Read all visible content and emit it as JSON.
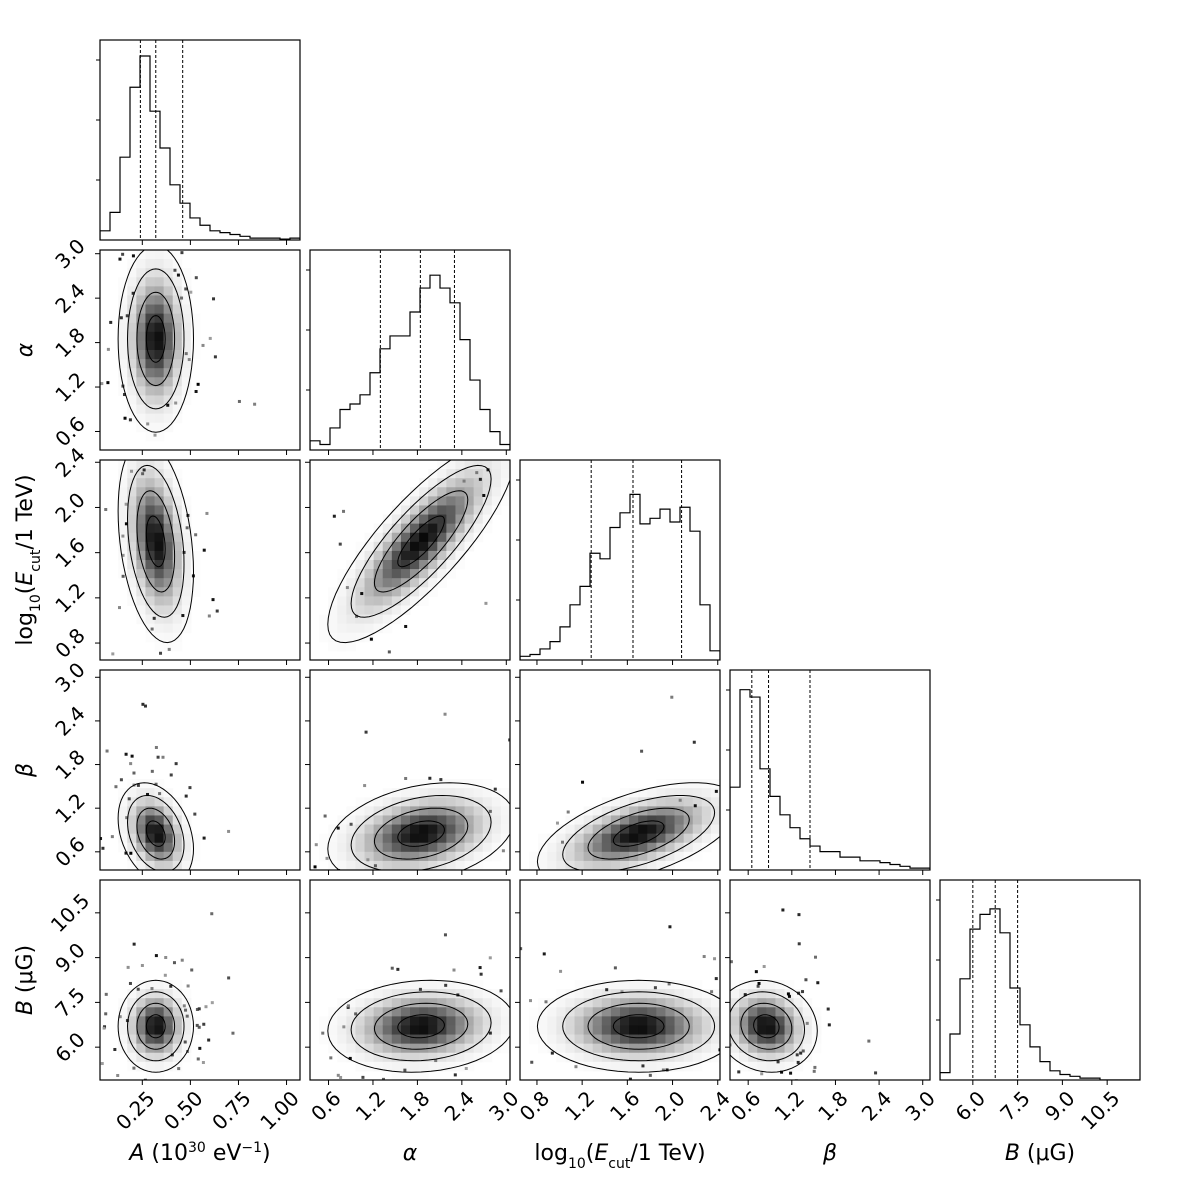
{
  "chart_data": {
    "type": "corner",
    "parameters": [
      {
        "key": "A",
        "label_parts": [
          [
            "A",
            "i"
          ],
          [
            " (10",
            "n"
          ],
          [
            "30",
            "sup"
          ],
          [
            " eV",
            "n"
          ],
          [
            "−1",
            "sup"
          ],
          [
            ")",
            "n"
          ]
        ],
        "range": [
          0.03,
          1.07
        ],
        "ticks": [
          0.25,
          0.5,
          0.75,
          1.0
        ],
        "tick_labels": [
          "0.25",
          "0.50",
          "0.75",
          "1.00"
        ],
        "mean": 0.32,
        "sd": 0.07,
        "quantiles": [
          0.24,
          0.32,
          0.46
        ]
      },
      {
        "key": "alpha",
        "label_parts": [
          [
            "α",
            "i"
          ]
        ],
        "range": [
          0.35,
          3.05
        ],
        "ticks": [
          0.6,
          1.2,
          1.8,
          2.4,
          3.0
        ],
        "tick_labels": [
          "0.6",
          "1.2",
          "1.8",
          "2.4",
          "3.0"
        ],
        "mean": 1.85,
        "sd": 0.45,
        "quantiles": [
          1.3,
          1.84,
          2.3
        ]
      },
      {
        "key": "logEcut",
        "label_parts": [
          [
            "log",
            "n"
          ],
          [
            "10",
            "sub"
          ],
          [
            "(",
            "n"
          ],
          [
            "E",
            "i"
          ],
          [
            "cut",
            "sub"
          ],
          [
            "/1 TeV)",
            "n"
          ]
        ],
        "range": [
          0.65,
          2.42
        ],
        "ticks": [
          0.8,
          1.2,
          1.6,
          2.0,
          2.4
        ],
        "tick_labels": [
          "0.8",
          "1.2",
          "1.6",
          "2.0",
          "2.4"
        ],
        "mean": 1.7,
        "sd": 0.32,
        "quantiles": [
          1.28,
          1.65,
          2.08
        ]
      },
      {
        "key": "beta",
        "label_parts": [
          [
            "β",
            "i"
          ]
        ],
        "range": [
          0.35,
          3.1
        ],
        "ticks": [
          0.6,
          1.2,
          1.8,
          2.4,
          3.0
        ],
        "tick_labels": [
          "0.6",
          "1.2",
          "1.8",
          "2.4",
          "3.0"
        ],
        "mean": 0.85,
        "sd": 0.25,
        "quantiles": [
          0.65,
          0.88,
          1.45
        ]
      },
      {
        "key": "B",
        "label_parts": [
          [
            "B",
            "i"
          ],
          [
            " (μG)",
            "n"
          ]
        ],
        "range": [
          4.9,
          11.6
        ],
        "ticks": [
          6.0,
          7.5,
          9.0,
          10.5
        ],
        "tick_labels": [
          "6.0",
          "7.5",
          "9.0",
          "10.5"
        ],
        "mean": 6.7,
        "sd": 0.55,
        "quantiles": [
          6.0,
          6.75,
          7.5
        ]
      }
    ],
    "histograms": [
      {
        "param": "A",
        "heights": [
          0.05,
          0.15,
          0.45,
          0.83,
          1.0,
          0.7,
          0.5,
          0.3,
          0.2,
          0.12,
          0.08,
          0.05,
          0.04,
          0.03,
          0.02,
          0.01,
          0.01,
          0.01,
          0.005,
          0.01
        ]
      },
      {
        "param": "alpha",
        "heights": [
          0.05,
          0.03,
          0.12,
          0.22,
          0.25,
          0.3,
          0.42,
          0.55,
          0.62,
          0.62,
          0.75,
          0.88,
          0.95,
          0.88,
          0.8,
          0.6,
          0.38,
          0.22,
          0.1,
          0.03
        ]
      },
      {
        "param": "logEcut",
        "heights": [
          0.02,
          0.03,
          0.06,
          0.1,
          0.18,
          0.3,
          0.4,
          0.58,
          0.55,
          0.72,
          0.8,
          0.9,
          0.74,
          0.77,
          0.82,
          0.75,
          0.83,
          0.7,
          0.3,
          0.05
        ]
      },
      {
        "param": "beta",
        "heights": [
          0.45,
          0.98,
          0.94,
          0.55,
          0.4,
          0.3,
          0.23,
          0.17,
          0.13,
          0.1,
          0.1,
          0.07,
          0.07,
          0.05,
          0.05,
          0.04,
          0.03,
          0.02,
          0.01,
          0.01
        ]
      },
      {
        "param": "B",
        "heights": [
          0.04,
          0.25,
          0.55,
          0.82,
          0.9,
          0.93,
          0.8,
          0.5,
          0.3,
          0.18,
          0.1,
          0.05,
          0.03,
          0.02,
          0.01,
          0.01,
          0.0,
          0.0,
          0.0,
          0.0
        ]
      }
    ],
    "pairs": [
      {
        "x": "A",
        "y": "alpha",
        "correlation": 0.0
      },
      {
        "x": "A",
        "y": "logEcut",
        "correlation": -0.3
      },
      {
        "x": "alpha",
        "y": "logEcut",
        "correlation": 0.82
      },
      {
        "x": "A",
        "y": "beta",
        "correlation": -0.3
      },
      {
        "x": "alpha",
        "y": "beta",
        "correlation": 0.3
      },
      {
        "x": "logEcut",
        "y": "beta",
        "correlation": 0.55
      },
      {
        "x": "A",
        "y": "B",
        "correlation": 0.0
      },
      {
        "x": "alpha",
        "y": "B",
        "correlation": 0.1
      },
      {
        "x": "logEcut",
        "y": "B",
        "correlation": 0.0
      },
      {
        "x": "beta",
        "y": "B",
        "correlation": -0.1
      }
    ],
    "contour_levels_sigma": [
      0.5,
      1.0,
      1.5,
      2.0
    ],
    "colors": {
      "line": "#000000",
      "density_max": "#000000",
      "background": "#ffffff"
    }
  }
}
